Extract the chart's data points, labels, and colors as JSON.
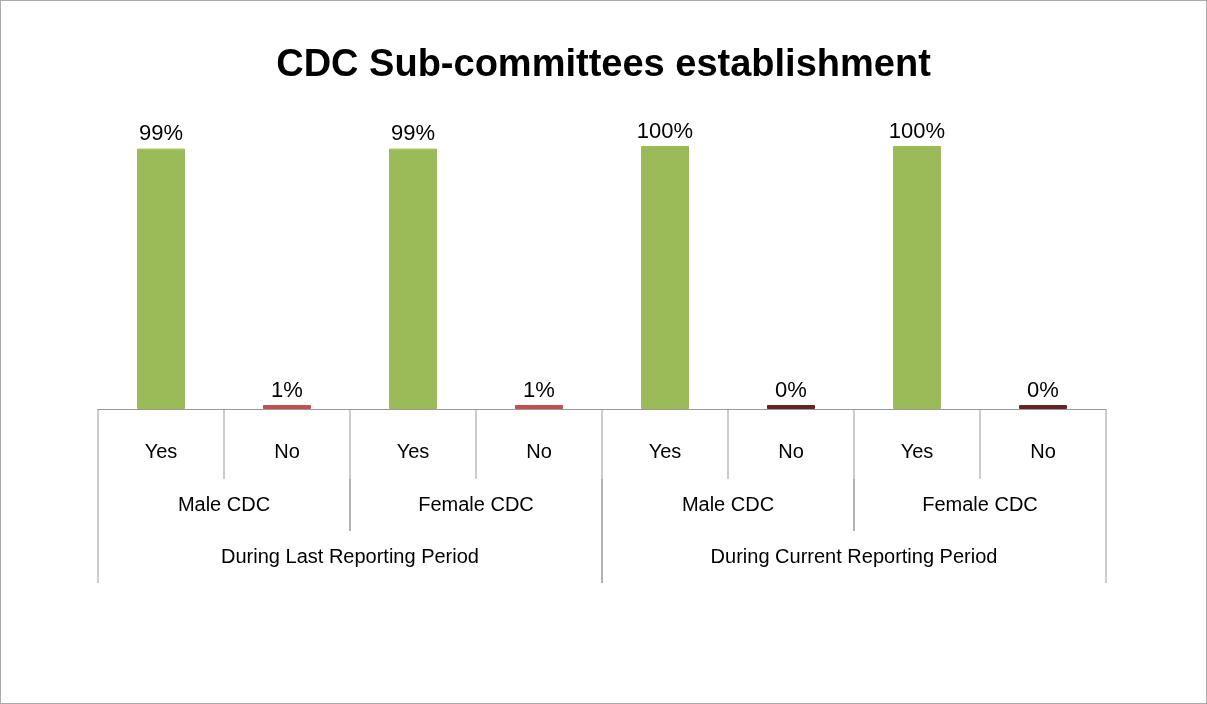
{
  "chart_data": {
    "type": "bar",
    "title": "CDC Sub-committees establishment",
    "categories": [
      "Yes",
      "No",
      "Yes",
      "No",
      "Yes",
      "No",
      "Yes",
      "No"
    ],
    "values": [
      99,
      1,
      99,
      1,
      100,
      0,
      100,
      0
    ],
    "colors": [
      "#9bbb59",
      "#c0504d",
      "#9bbb59",
      "#c0504d",
      "#9bbb59",
      "#632523",
      "#9bbb59",
      "#632523"
    ],
    "value_labels": [
      "99%",
      "1%",
      "99%",
      "1%",
      "100%",
      "0%",
      "100%",
      "0%"
    ],
    "annotations": [
      "Male CDC",
      "Female CDC",
      "Male CDC",
      "Female CDC",
      "During Last Reporting Period",
      "During Current Reporting Period"
    ]
  }
}
